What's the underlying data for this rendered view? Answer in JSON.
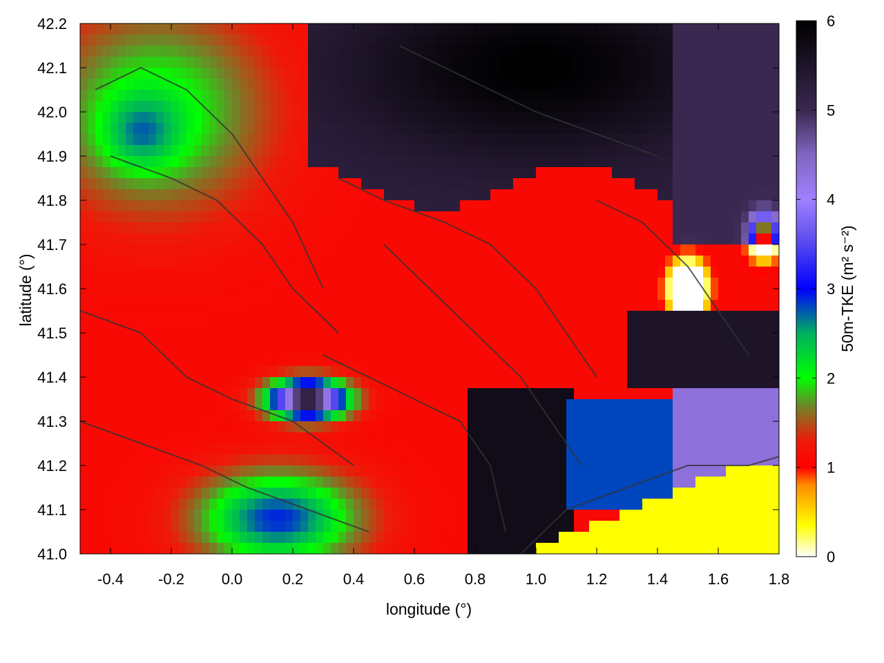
{
  "chart_data": {
    "type": "heatmap",
    "xlabel": "longitude (°)",
    "ylabel": "latitude (°)",
    "colorbar_label": "50m-TKE (m² s⁻²)",
    "xlim": [
      -0.5,
      1.8
    ],
    "ylim": [
      41.0,
      42.2
    ],
    "x_ticks": [
      "-0.4",
      "-0.2",
      "0.0",
      "0.2",
      "0.4",
      "0.6",
      "0.8",
      "1.0",
      "1.2",
      "1.4",
      "1.6",
      "1.8"
    ],
    "x_tick_values": [
      -0.4,
      -0.2,
      0.0,
      0.2,
      0.4,
      0.6,
      0.8,
      1.0,
      1.2,
      1.4,
      1.6,
      1.8
    ],
    "y_ticks": [
      "41.0",
      "41.1",
      "41.2",
      "41.3",
      "41.4",
      "41.5",
      "41.6",
      "41.7",
      "41.8",
      "41.9",
      "42.0",
      "42.1",
      "42.2"
    ],
    "y_tick_values": [
      41.0,
      41.1,
      41.2,
      41.3,
      41.4,
      41.5,
      41.6,
      41.7,
      41.8,
      41.9,
      42.0,
      42.1,
      42.2
    ],
    "colorbar_range": [
      0,
      6
    ],
    "colorbar_ticks": [
      "0",
      "1",
      "2",
      "3",
      "4",
      "5",
      "6"
    ],
    "colorbar_tick_values": [
      0,
      1,
      2,
      3,
      4,
      5,
      6
    ],
    "colormap": [
      {
        "v": 0.0,
        "color": "#ffffff"
      },
      {
        "v": 0.35,
        "color": "#ffff00"
      },
      {
        "v": 0.8,
        "color": "#ff8c00"
      },
      {
        "v": 1.0,
        "color": "#ff0000"
      },
      {
        "v": 1.3,
        "color": "#ee1a0a"
      },
      {
        "v": 1.7,
        "color": "#6a8a2a"
      },
      {
        "v": 2.0,
        "color": "#00ff00"
      },
      {
        "v": 2.5,
        "color": "#00b060"
      },
      {
        "v": 3.0,
        "color": "#0000ff"
      },
      {
        "v": 3.6,
        "color": "#6655ee"
      },
      {
        "v": 4.0,
        "color": "#a080ff"
      },
      {
        "v": 4.5,
        "color": "#8066c0"
      },
      {
        "v": 5.0,
        "color": "#3a2850"
      },
      {
        "v": 6.0,
        "color": "#000000"
      }
    ],
    "grid": false,
    "overlay": "terrain contour lines (dark grey)",
    "regions": [
      {
        "description": "northwest low-TKE zone",
        "lon": [
          -0.5,
          0.15
        ],
        "lat": [
          41.75,
          42.2
        ],
        "tke": 2.0
      },
      {
        "description": "far northwest blue core",
        "lon": [
          -0.35,
          -0.15
        ],
        "lat": [
          41.9,
          42.0
        ],
        "tke": 2.7
      },
      {
        "description": "central high-red band",
        "lon": [
          -0.5,
          1.3
        ],
        "lat": [
          41.25,
          41.8
        ],
        "tke": 1.1
      },
      {
        "description": "north-east black high-TKE area",
        "lon": [
          0.25,
          1.8
        ],
        "lat": [
          41.85,
          42.2
        ],
        "tke": 6.0
      },
      {
        "description": "south-central green/blue valley",
        "lon": [
          -0.2,
          0.5
        ],
        "lat": [
          41.0,
          41.2
        ],
        "tke": 2.5
      },
      {
        "description": "south-east black area",
        "lon": [
          0.75,
          1.1
        ],
        "lat": [
          41.0,
          41.4
        ],
        "tke": 5.8
      },
      {
        "description": "east purple sector",
        "lon": [
          1.45,
          1.75
        ],
        "lat": [
          41.15,
          41.5
        ],
        "tke": 4.2
      },
      {
        "description": "sea (yellow)",
        "lon": [
          0.95,
          1.8
        ],
        "lat": [
          41.0,
          41.2
        ],
        "tke": 0.35
      },
      {
        "description": "eastern hotspots (orange/yellow)",
        "lon": [
          1.45,
          1.8
        ],
        "lat": [
          41.55,
          41.75
        ],
        "tke": 0.6
      }
    ]
  }
}
